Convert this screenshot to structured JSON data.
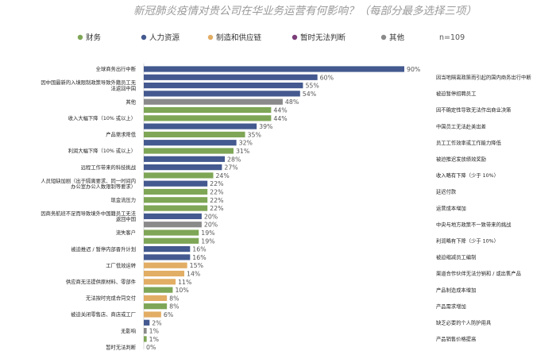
{
  "chart_data": {
    "type": "bar",
    "orientation": "horizontal",
    "title": "新冠肺炎疫情对贵公司在华业务运营有何影响？（每部分最多选择三项）",
    "n_label": "n=109",
    "xlim": [
      0,
      100
    ],
    "grid": false,
    "legend_position": "top",
    "legend": [
      {
        "key": "finance",
        "name": "财务",
        "color": "#7ea656"
      },
      {
        "key": "hr",
        "name": "人力资源",
        "color": "#43598f"
      },
      {
        "key": "supply",
        "name": "制造和供应链",
        "color": "#e2ad64"
      },
      {
        "key": "undecided",
        "name": "暂时无法判断",
        "color": "#7b3d78"
      },
      {
        "key": "other",
        "name": "其他",
        "color": "#8a8a8a"
      }
    ],
    "bars": [
      {
        "label": "全球商务出行中断",
        "side": "left",
        "value": 90,
        "series": "hr"
      },
      {
        "label": "因当地隔离政策而引起的国内商务出行中断",
        "side": "right",
        "value": 60,
        "series": "hr"
      },
      {
        "label": "因中国最新的入境限制政策导致外籍员工无法返回中国",
        "side": "left",
        "value": 55,
        "series": "hr"
      },
      {
        "label": "被迫暂停招聘员工",
        "side": "right",
        "value": 54,
        "series": "hr"
      },
      {
        "label": "其他",
        "side": "left",
        "value": 48,
        "series": "other"
      },
      {
        "label": "因不确定性导致无法作出商业决策",
        "side": "right",
        "value": 44,
        "series": "finance"
      },
      {
        "label": "收入大幅下降（10% 或以上）",
        "side": "left",
        "value": 44,
        "series": "finance"
      },
      {
        "label": "中国员工无法赴美出差",
        "side": "right",
        "value": 39,
        "series": "hr"
      },
      {
        "label": "产品需求降低",
        "side": "left",
        "value": 35,
        "series": "finance"
      },
      {
        "label": "员工工作效率或工作能力降低",
        "side": "right",
        "value": 32,
        "series": "hr"
      },
      {
        "label": "利润大幅下降（10% 或以上）",
        "side": "left",
        "value": 31,
        "series": "finance"
      },
      {
        "label": "被迫推迟发放绩效奖励",
        "side": "right",
        "value": 28,
        "series": "hr"
      },
      {
        "label": "远程工作带来的科技挑战",
        "side": "left",
        "value": 27,
        "series": "hr"
      },
      {
        "label": "收入略有下降（少于 10%）",
        "side": "right",
        "value": 24,
        "series": "finance"
      },
      {
        "label": "人员短缺加剧（出于隔离要求、同一时间内办公室办公人数限制等要求）",
        "side": "left",
        "value": 22,
        "series": "hr"
      },
      {
        "label": "延迟付款",
        "side": "right",
        "value": 22,
        "series": "finance"
      },
      {
        "label": "现金流压力",
        "side": "left",
        "value": 22,
        "series": "finance"
      },
      {
        "label": "运营成本增加",
        "side": "right",
        "value": 22,
        "series": "finance"
      },
      {
        "label": "因商务航班不足而导致境外中国籍员工无法返回中国",
        "side": "left",
        "value": 20,
        "series": "hr"
      },
      {
        "label": "中央与地方政策不一致带来的挑战",
        "side": "right",
        "value": 20,
        "series": "other"
      },
      {
        "label": "流失客户",
        "side": "left",
        "value": 19,
        "series": "finance"
      },
      {
        "label": "利润略有下降（少于 10%）",
        "side": "right",
        "value": 19,
        "series": "finance"
      },
      {
        "label": "被迫推迟 / 暂停内部晋升计划",
        "side": "left",
        "value": 16,
        "series": "hr"
      },
      {
        "label": "被迫缩减员工编制",
        "side": "right",
        "value": 16,
        "series": "hr"
      },
      {
        "label": "工厂低效运转",
        "side": "left",
        "value": 15,
        "series": "supply"
      },
      {
        "label": "渠道合作伙伴无法分销和 / 或出售产品",
        "side": "right",
        "value": 14,
        "series": "supply"
      },
      {
        "label": "供应商无法提供原材料、零部件",
        "side": "left",
        "value": 11,
        "series": "supply"
      },
      {
        "label": "产品制造成本增加",
        "side": "right",
        "value": 10,
        "series": "finance"
      },
      {
        "label": "无法按时完成合同交付",
        "side": "left",
        "value": 8,
        "series": "supply"
      },
      {
        "label": "产品需求增加",
        "side": "right",
        "value": 8,
        "series": "finance"
      },
      {
        "label": "被迫关闭零售店、商店或工厂",
        "side": "left",
        "value": 6,
        "series": "supply"
      },
      {
        "label": "缺乏必要的个人防护用具",
        "side": "right",
        "value": 2,
        "series": "hr"
      },
      {
        "label": "无影响",
        "side": "left",
        "value": 1,
        "series": "other"
      },
      {
        "label": "产品销售价格提高",
        "side": "right",
        "value": 1,
        "series": "finance"
      },
      {
        "label": "暂时无法判断",
        "side": "left",
        "value": 0,
        "series": "undecided"
      }
    ]
  }
}
